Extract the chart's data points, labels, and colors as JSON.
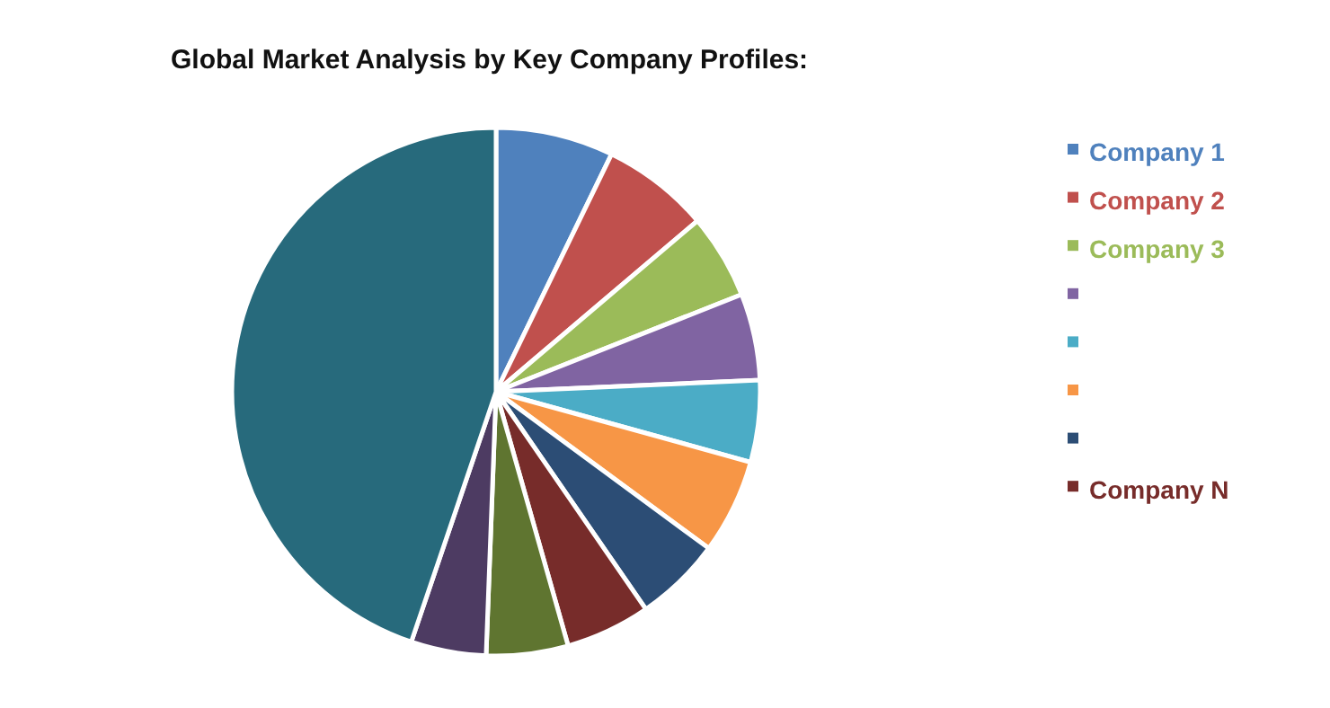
{
  "chart_data": {
    "type": "pie",
    "title": "Global Market Analysis by Key Company Profiles:",
    "categories": [
      "Company 1",
      "Company 2",
      "Company 3",
      null,
      null,
      null,
      null,
      "Company N",
      null,
      null,
      null
    ],
    "values": [
      7.2,
      6.6,
      5.2,
      5.3,
      5.0,
      5.8,
      5.3,
      5.2,
      5.0,
      4.6,
      44.8
    ],
    "colors": [
      "#4f81bd",
      "#c0504d",
      "#9bbb59",
      "#8064a2",
      "#4bacc6",
      "#f79646",
      "#2c4d75",
      "#772c2a",
      "#5f7530",
      "#4d3b62",
      "#276a7c"
    ],
    "legend": "right"
  }
}
